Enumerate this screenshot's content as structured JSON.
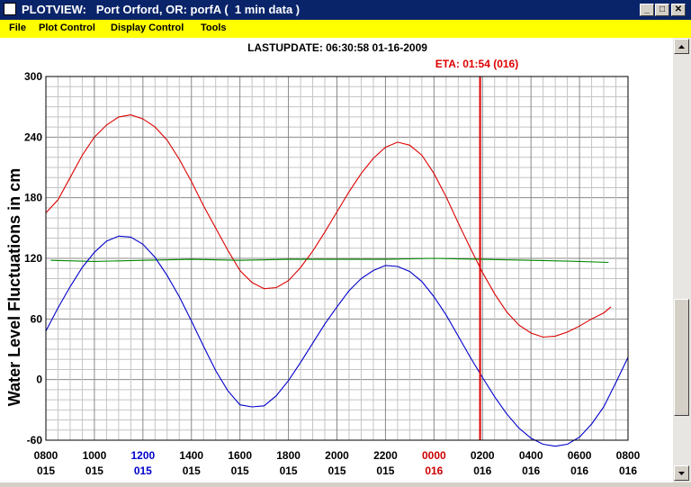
{
  "window": {
    "title": "PLOTVIEW:   Port Orford, OR: porfA (  1 min data )",
    "minimize_glyph": "_",
    "maximize_glyph": "□",
    "close_glyph": "✕"
  },
  "menu": [
    "File",
    "Plot Control",
    "Display Control",
    "Tools"
  ],
  "chart_data": {
    "type": "line",
    "header": "LASTUPDATE: 06:30:58  01-16-2009",
    "eta_label": "ETA: 01:54 (016)",
    "ylabel": "Water Level Fluctuations in cm",
    "ylim": [
      -60,
      300
    ],
    "yticks": [
      -60,
      0,
      60,
      120,
      180,
      240,
      300
    ],
    "xlim": [
      0,
      24
    ],
    "x_units": "hours since 0800 day 015",
    "xticks": [
      {
        "x": 0,
        "top": "0800",
        "bottom": "015",
        "color": "#000000"
      },
      {
        "x": 2,
        "top": "1000",
        "bottom": "015",
        "color": "#000000"
      },
      {
        "x": 4,
        "top": "1200",
        "bottom": "015",
        "color": "#0000cc"
      },
      {
        "x": 6,
        "top": "1400",
        "bottom": "015",
        "color": "#000000"
      },
      {
        "x": 8,
        "top": "1600",
        "bottom": "015",
        "color": "#000000"
      },
      {
        "x": 10,
        "top": "1800",
        "bottom": "015",
        "color": "#000000"
      },
      {
        "x": 12,
        "top": "2000",
        "bottom": "015",
        "color": "#000000"
      },
      {
        "x": 14,
        "top": "2200",
        "bottom": "015",
        "color": "#000000"
      },
      {
        "x": 16,
        "top": "0000",
        "bottom": "016",
        "color": "#cc0000"
      },
      {
        "x": 18,
        "top": "0200",
        "bottom": "016",
        "color": "#000000"
      },
      {
        "x": 20,
        "top": "0400",
        "bottom": "016",
        "color": "#000000"
      },
      {
        "x": 22,
        "top": "0600",
        "bottom": "016",
        "color": "#000000"
      },
      {
        "x": 24,
        "top": "0800",
        "bottom": "016",
        "color": "#000000"
      }
    ],
    "eta_x": 17.9,
    "grid": true,
    "series": [
      {
        "color": "#dd0000",
        "x": [
          0,
          0.5,
          1,
          1.5,
          2,
          2.5,
          3,
          3.5,
          4,
          4.5,
          5,
          5.5,
          6,
          6.5,
          7,
          7.5,
          8,
          8.5,
          9,
          9.5,
          10,
          10.5,
          11,
          11.5,
          12,
          12.5,
          13,
          13.5,
          14,
          14.5,
          15,
          15.5,
          16,
          16.5,
          17,
          17.5,
          18,
          18.5,
          19,
          19.5,
          20,
          20.5,
          21,
          21.5,
          22,
          22.5,
          23,
          23.3
        ],
        "values": [
          165,
          178,
          200,
          222,
          240,
          252,
          260,
          262,
          258,
          250,
          237,
          218,
          196,
          172,
          150,
          128,
          108,
          96,
          90,
          91,
          98,
          111,
          127,
          146,
          166,
          186,
          204,
          219,
          230,
          235,
          232,
          222,
          204,
          181,
          155,
          130,
          106,
          85,
          67,
          54,
          46,
          42,
          43,
          47,
          53,
          60,
          66,
          72
        ]
      },
      {
        "color": "#008800",
        "x": [
          0.2,
          2,
          4,
          6,
          8,
          10,
          12,
          14,
          16,
          18,
          20,
          22,
          23.2
        ],
        "values": [
          118,
          117,
          118,
          119,
          118,
          119,
          119,
          119,
          120,
          119,
          118,
          117,
          116
        ]
      },
      {
        "color": "#0000cc",
        "x": [
          0,
          0.5,
          1,
          1.5,
          2,
          2.5,
          3,
          3.5,
          4,
          4.5,
          5,
          5.5,
          6,
          6.5,
          7,
          7.5,
          8,
          8.5,
          9,
          9.5,
          10,
          10.5,
          11,
          11.5,
          12,
          12.5,
          13,
          13.5,
          14,
          14.5,
          15,
          15.5,
          16,
          16.5,
          17,
          17.5,
          18,
          18.5,
          19,
          19.5,
          20,
          20.5,
          21,
          21.5,
          22,
          22.5,
          23,
          23.5,
          24
        ],
        "values": [
          48,
          71,
          92,
          111,
          126,
          137,
          142,
          141,
          134,
          121,
          103,
          82,
          58,
          33,
          9,
          -11,
          -25,
          -27,
          -26,
          -16,
          -1,
          17,
          36,
          55,
          72,
          88,
          100,
          108,
          113,
          112,
          107,
          97,
          82,
          64,
          43,
          22,
          2,
          -17,
          -34,
          -48,
          -58,
          -64,
          -66,
          -64,
          -57,
          -44,
          -27,
          -3,
          22
        ]
      }
    ]
  }
}
